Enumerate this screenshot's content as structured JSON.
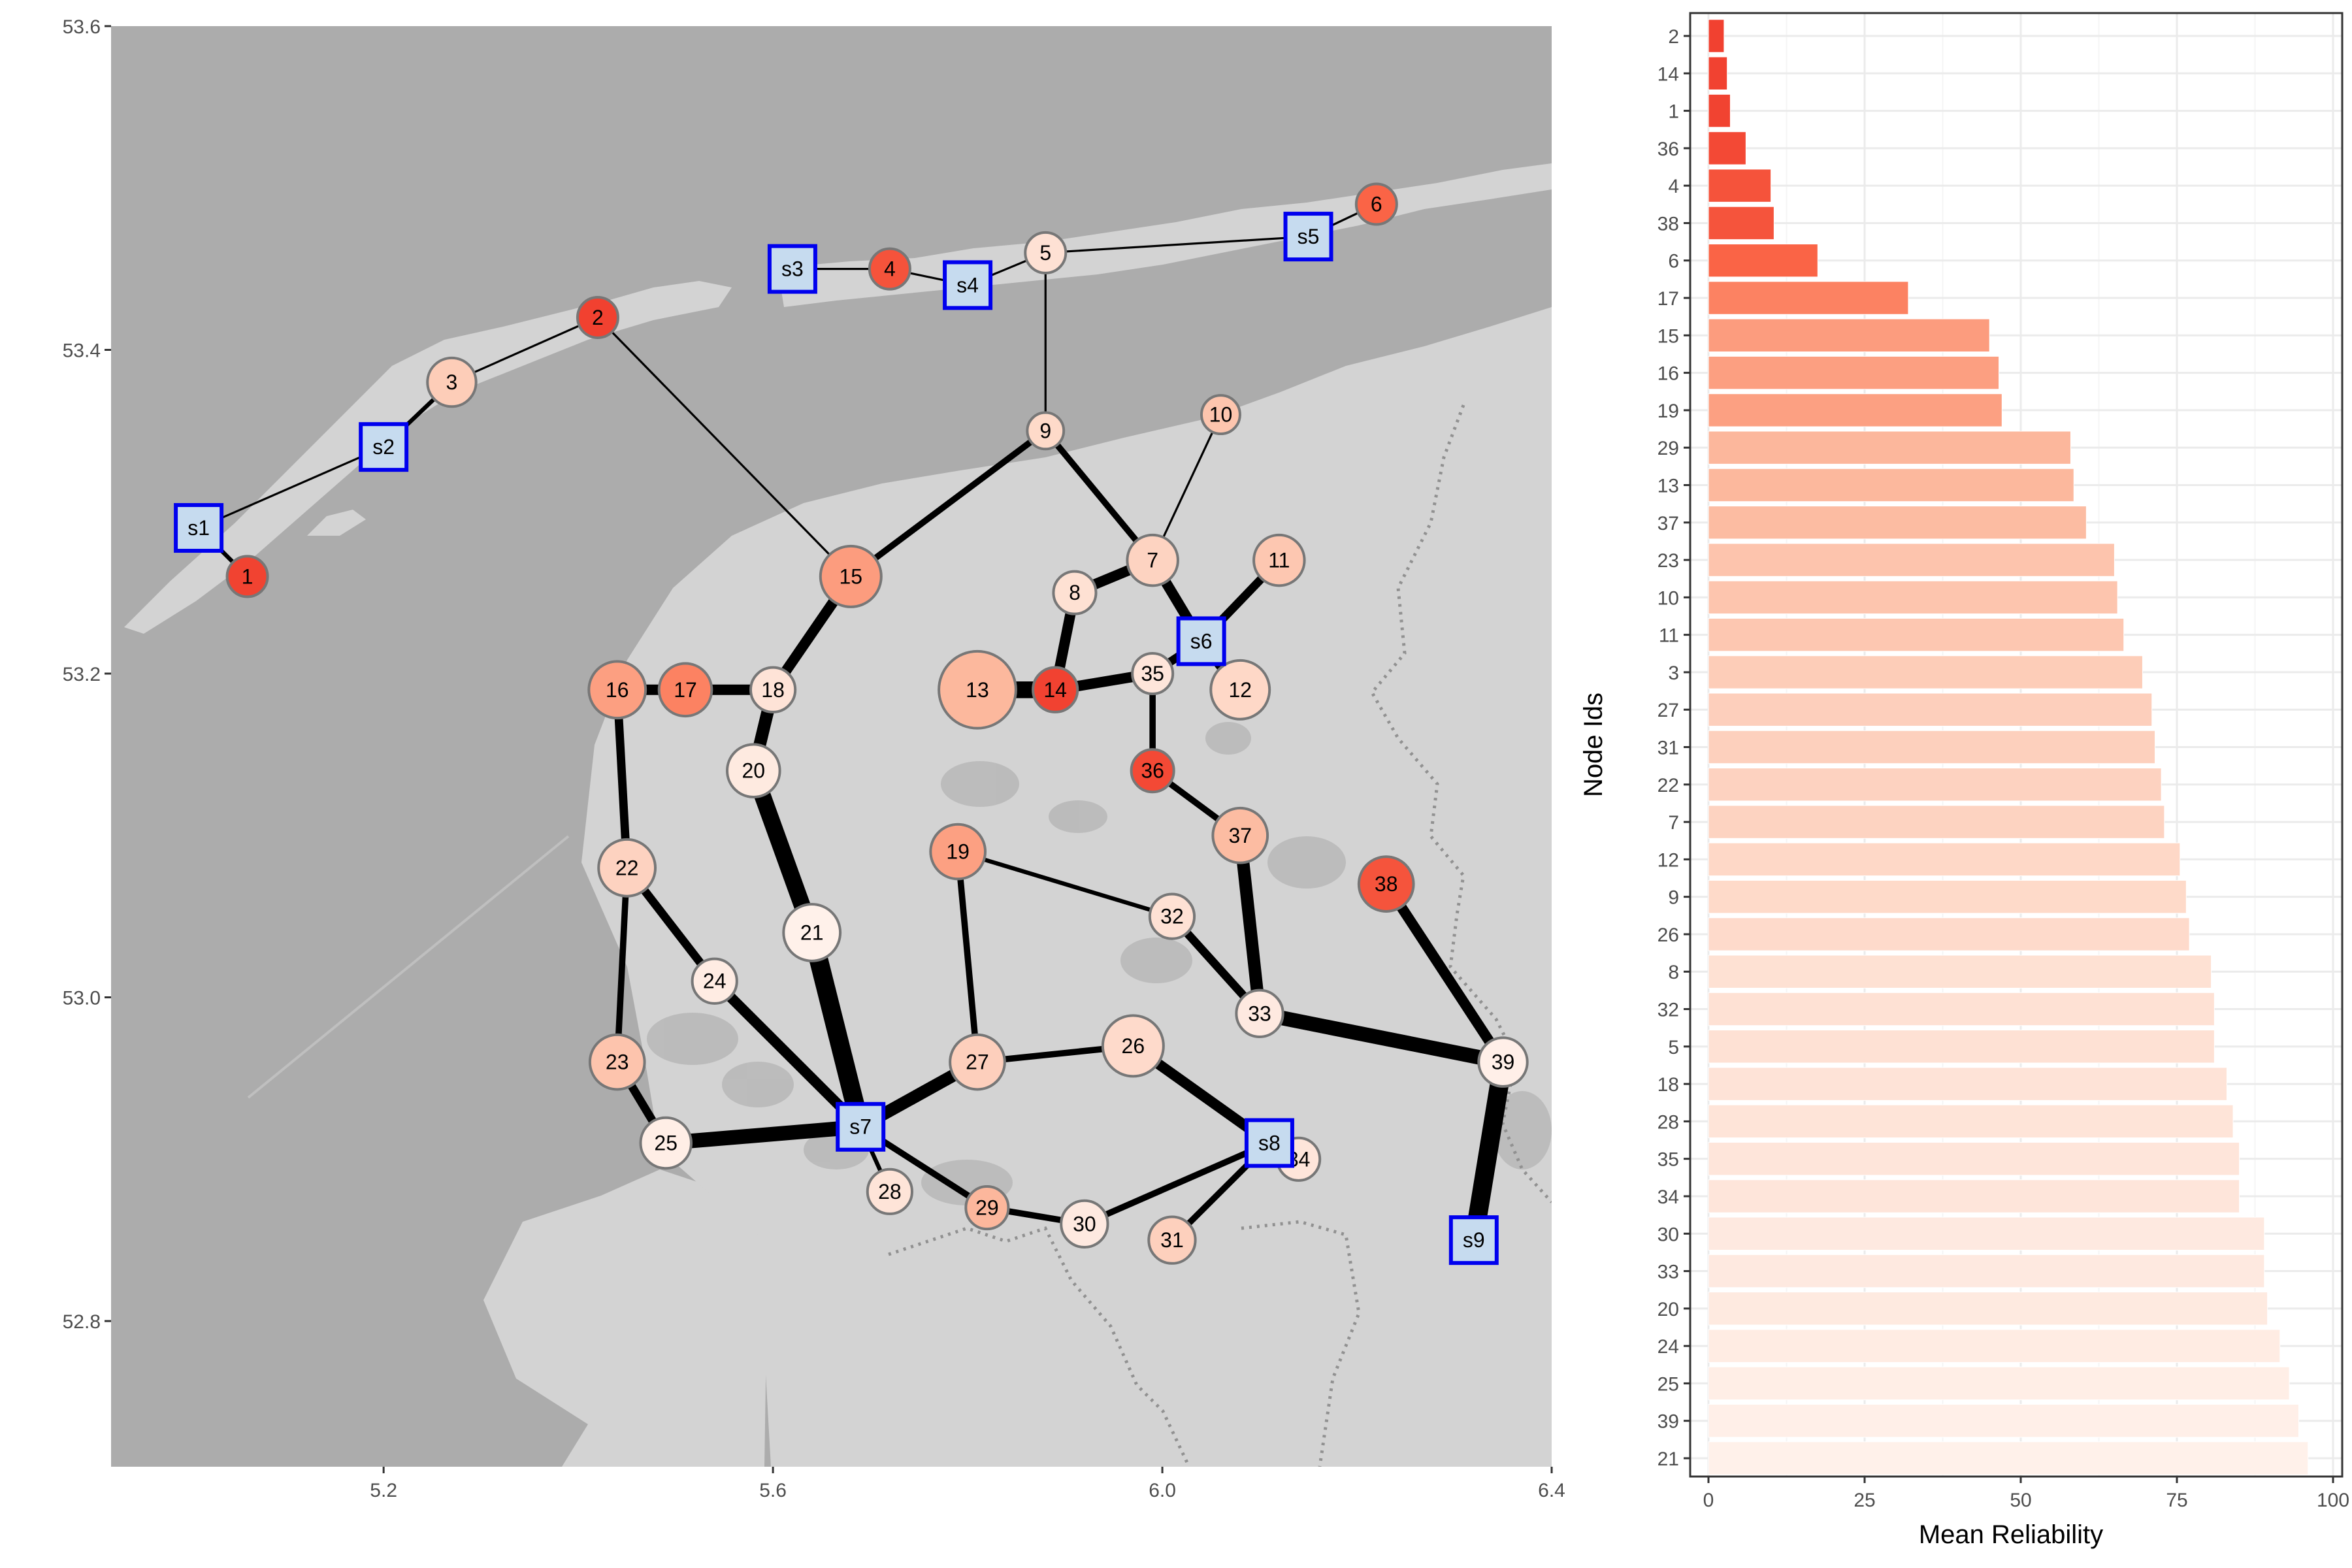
{
  "colors": {
    "sea": "#acacac",
    "land": "#d3d3d3",
    "border": "#919191",
    "edge": "#000000",
    "station_fill": "#c6dbef",
    "station_stroke": "#0000ee",
    "node_stroke": "#777777",
    "bar_gradient": [
      "#fff5f0",
      "#fee0d2",
      "#fcbba1",
      "#fc9272",
      "#fb6a4a",
      "#ef3b2c"
    ],
    "grid_major": "#ebebeb",
    "grid_minor": "#f5f5f5",
    "panel_border": "#333333"
  },
  "chart_data": [
    {
      "type": "network-map",
      "title": "",
      "xlabel": "",
      "ylabel": "",
      "xlim": [
        4.92,
        6.4
      ],
      "ylim": [
        52.71,
        53.6
      ],
      "x_ticks": [
        "5.2",
        "5.6",
        "6.0",
        "6.4"
      ],
      "x_tick_values": [
        5.2,
        5.6,
        6.0,
        6.4
      ],
      "y_ticks": [
        "52.8",
        "53.0",
        "53.2",
        "53.4",
        "53.6"
      ],
      "y_tick_values": [
        52.8,
        53.0,
        53.2,
        53.4,
        53.6
      ],
      "nodes": [
        {
          "id": "1",
          "lon": 5.06,
          "lat": 53.26,
          "reliability": 3.5,
          "size": 1.0,
          "kind": "node"
        },
        {
          "id": "2",
          "lon": 5.42,
          "lat": 53.42,
          "reliability": 2.5,
          "size": 1.0,
          "kind": "node"
        },
        {
          "id": "3",
          "lon": 5.27,
          "lat": 53.38,
          "reliability": 69.5,
          "size": 1.2,
          "kind": "node"
        },
        {
          "id": "4",
          "lon": 5.72,
          "lat": 53.45,
          "reliability": 10.0,
          "size": 1.0,
          "kind": "node"
        },
        {
          "id": "5",
          "lon": 5.88,
          "lat": 53.46,
          "reliability": 81.0,
          "size": 1.0,
          "kind": "node"
        },
        {
          "id": "6",
          "lon": 6.22,
          "lat": 53.49,
          "reliability": 17.5,
          "size": 1.0,
          "kind": "node"
        },
        {
          "id": "7",
          "lon": 5.99,
          "lat": 53.27,
          "reliability": 73.0,
          "size": 1.25,
          "kind": "node"
        },
        {
          "id": "8",
          "lon": 5.91,
          "lat": 53.25,
          "reliability": 80.5,
          "size": 1.05,
          "kind": "node"
        },
        {
          "id": "9",
          "lon": 5.88,
          "lat": 53.35,
          "reliability": 76.5,
          "size": 0.9,
          "kind": "node"
        },
        {
          "id": "10",
          "lon": 6.06,
          "lat": 53.36,
          "reliability": 65.5,
          "size": 0.95,
          "kind": "node"
        },
        {
          "id": "11",
          "lon": 6.12,
          "lat": 53.27,
          "reliability": 66.5,
          "size": 1.25,
          "kind": "node"
        },
        {
          "id": "12",
          "lon": 6.08,
          "lat": 53.19,
          "reliability": 75.5,
          "size": 1.45,
          "kind": "node"
        },
        {
          "id": "13",
          "lon": 5.81,
          "lat": 53.19,
          "reliability": 58.5,
          "size": 1.9,
          "kind": "node"
        },
        {
          "id": "14",
          "lon": 5.89,
          "lat": 53.19,
          "reliability": 3.0,
          "size": 1.1,
          "kind": "node"
        },
        {
          "id": "15",
          "lon": 5.68,
          "lat": 53.26,
          "reliability": 45.0,
          "size": 1.5,
          "kind": "node"
        },
        {
          "id": "16",
          "lon": 5.44,
          "lat": 53.19,
          "reliability": 46.5,
          "size": 1.4,
          "kind": "node"
        },
        {
          "id": "17",
          "lon": 5.51,
          "lat": 53.19,
          "reliability": 32.0,
          "size": 1.3,
          "kind": "node"
        },
        {
          "id": "18",
          "lon": 5.6,
          "lat": 53.19,
          "reliability": 83.0,
          "size": 1.1,
          "kind": "node"
        },
        {
          "id": "19",
          "lon": 5.79,
          "lat": 53.09,
          "reliability": 47.0,
          "size": 1.35,
          "kind": "node"
        },
        {
          "id": "20",
          "lon": 5.58,
          "lat": 53.14,
          "reliability": 89.5,
          "size": 1.3,
          "kind": "node"
        },
        {
          "id": "21",
          "lon": 5.64,
          "lat": 53.04,
          "reliability": 96.0,
          "size": 1.4,
          "kind": "node"
        },
        {
          "id": "22",
          "lon": 5.45,
          "lat": 53.08,
          "reliability": 72.5,
          "size": 1.4,
          "kind": "node"
        },
        {
          "id": "23",
          "lon": 5.44,
          "lat": 52.96,
          "reliability": 65.0,
          "size": 1.35,
          "kind": "node"
        },
        {
          "id": "24",
          "lon": 5.54,
          "lat": 53.01,
          "reliability": 91.5,
          "size": 1.1,
          "kind": "node"
        },
        {
          "id": "25",
          "lon": 5.49,
          "lat": 52.91,
          "reliability": 93.0,
          "size": 1.25,
          "kind": "node"
        },
        {
          "id": "26",
          "lon": 5.97,
          "lat": 52.97,
          "reliability": 77.0,
          "size": 1.5,
          "kind": "node"
        },
        {
          "id": "27",
          "lon": 5.81,
          "lat": 52.96,
          "reliability": 71.0,
          "size": 1.35,
          "kind": "node"
        },
        {
          "id": "28",
          "lon": 5.72,
          "lat": 52.88,
          "reliability": 84.0,
          "size": 1.1,
          "kind": "node"
        },
        {
          "id": "29",
          "lon": 5.82,
          "lat": 52.87,
          "reliability": 58.0,
          "size": 1.05,
          "kind": "node"
        },
        {
          "id": "30",
          "lon": 5.92,
          "lat": 52.86,
          "reliability": 89.0,
          "size": 1.15,
          "kind": "node"
        },
        {
          "id": "31",
          "lon": 6.01,
          "lat": 52.85,
          "reliability": 71.5,
          "size": 1.15,
          "kind": "node"
        },
        {
          "id": "32",
          "lon": 6.01,
          "lat": 53.05,
          "reliability": 81.0,
          "size": 1.1,
          "kind": "node"
        },
        {
          "id": "33",
          "lon": 6.1,
          "lat": 52.99,
          "reliability": 89.0,
          "size": 1.15,
          "kind": "node"
        },
        {
          "id": "34",
          "lon": 6.14,
          "lat": 52.9,
          "reliability": 85.0,
          "size": 1.05,
          "kind": "node"
        },
        {
          "id": "35",
          "lon": 5.99,
          "lat": 53.2,
          "reliability": 85.0,
          "size": 1.0,
          "kind": "node"
        },
        {
          "id": "36",
          "lon": 5.99,
          "lat": 53.14,
          "reliability": 6.0,
          "size": 1.05,
          "kind": "node"
        },
        {
          "id": "37",
          "lon": 6.08,
          "lat": 53.1,
          "reliability": 60.5,
          "size": 1.35,
          "kind": "node"
        },
        {
          "id": "38",
          "lon": 6.23,
          "lat": 53.07,
          "reliability": 10.5,
          "size": 1.35,
          "kind": "node"
        },
        {
          "id": "39",
          "lon": 6.35,
          "lat": 52.96,
          "reliability": 94.5,
          "size": 1.2,
          "kind": "node"
        },
        {
          "id": "s1",
          "lon": 5.01,
          "lat": 53.29,
          "kind": "station"
        },
        {
          "id": "s2",
          "lon": 5.2,
          "lat": 53.34,
          "kind": "station"
        },
        {
          "id": "s3",
          "lon": 5.62,
          "lat": 53.45,
          "kind": "station"
        },
        {
          "id": "s4",
          "lon": 5.8,
          "lat": 53.44,
          "kind": "station"
        },
        {
          "id": "s5",
          "lon": 6.15,
          "lat": 53.47,
          "kind": "station"
        },
        {
          "id": "s6",
          "lon": 6.04,
          "lat": 53.22,
          "kind": "station"
        },
        {
          "id": "s7",
          "lon": 5.69,
          "lat": 52.92,
          "kind": "station"
        },
        {
          "id": "s8",
          "lon": 6.11,
          "lat": 52.91,
          "kind": "station"
        },
        {
          "id": "s9",
          "lon": 6.32,
          "lat": 52.85,
          "kind": "station"
        }
      ],
      "edges": [
        {
          "from": "1",
          "to": "s1",
          "weight": 2
        },
        {
          "from": "s1",
          "to": "s2",
          "weight": 1
        },
        {
          "from": "s2",
          "to": "3",
          "weight": 2
        },
        {
          "from": "3",
          "to": "2",
          "weight": 1
        },
        {
          "from": "2",
          "to": "15",
          "weight": 1
        },
        {
          "from": "s3",
          "to": "4",
          "weight": 1
        },
        {
          "from": "4",
          "to": "s4",
          "weight": 1
        },
        {
          "from": "s4",
          "to": "5",
          "weight": 1
        },
        {
          "from": "5",
          "to": "s5",
          "weight": 1
        },
        {
          "from": "s5",
          "to": "6",
          "weight": 1
        },
        {
          "from": "5",
          "to": "9",
          "weight": 1
        },
        {
          "from": "9",
          "to": "15",
          "weight": 3
        },
        {
          "from": "9",
          "to": "7",
          "weight": 3
        },
        {
          "from": "10",
          "to": "7",
          "weight": 1
        },
        {
          "from": "7",
          "to": "8",
          "weight": 5
        },
        {
          "from": "7",
          "to": "s6",
          "weight": 5
        },
        {
          "from": "11",
          "to": "s6",
          "weight": 4
        },
        {
          "from": "s6",
          "to": "12",
          "weight": 5
        },
        {
          "from": "s6",
          "to": "35",
          "weight": 4
        },
        {
          "from": "8",
          "to": "14",
          "weight": 5
        },
        {
          "from": "13",
          "to": "14",
          "weight": 8
        },
        {
          "from": "14",
          "to": "35",
          "weight": 5
        },
        {
          "from": "35",
          "to": "36",
          "weight": 3
        },
        {
          "from": "36",
          "to": "37",
          "weight": 3
        },
        {
          "from": "37",
          "to": "33",
          "weight": 6
        },
        {
          "from": "15",
          "to": "18",
          "weight": 5
        },
        {
          "from": "16",
          "to": "17",
          "weight": 5
        },
        {
          "from": "17",
          "to": "18",
          "weight": 5
        },
        {
          "from": "18",
          "to": "20",
          "weight": 6
        },
        {
          "from": "20",
          "to": "21",
          "weight": 8
        },
        {
          "from": "21",
          "to": "s7",
          "weight": 9
        },
        {
          "from": "16",
          "to": "22",
          "weight": 4
        },
        {
          "from": "22",
          "to": "23",
          "weight": 3
        },
        {
          "from": "22",
          "to": "24",
          "weight": 4
        },
        {
          "from": "24",
          "to": "s7",
          "weight": 5
        },
        {
          "from": "23",
          "to": "25",
          "weight": 4
        },
        {
          "from": "25",
          "to": "s7",
          "weight": 7
        },
        {
          "from": "s7",
          "to": "27",
          "weight": 6
        },
        {
          "from": "s7",
          "to": "28",
          "weight": 2
        },
        {
          "from": "s7",
          "to": "29",
          "weight": 3
        },
        {
          "from": "19",
          "to": "27",
          "weight": 3
        },
        {
          "from": "19",
          "to": "32",
          "weight": 2
        },
        {
          "from": "27",
          "to": "26",
          "weight": 3
        },
        {
          "from": "26",
          "to": "s8",
          "weight": 5
        },
        {
          "from": "s8",
          "to": "34",
          "weight": 2
        },
        {
          "from": "s8",
          "to": "30",
          "weight": 3
        },
        {
          "from": "s8",
          "to": "31",
          "weight": 3
        },
        {
          "from": "29",
          "to": "30",
          "weight": 3
        },
        {
          "from": "32",
          "to": "33",
          "weight": 4
        },
        {
          "from": "33",
          "to": "39",
          "weight": 7
        },
        {
          "from": "38",
          "to": "39",
          "weight": 5
        },
        {
          "from": "39",
          "to": "s9",
          "weight": 9
        }
      ]
    },
    {
      "type": "bar",
      "orientation": "horizontal",
      "title": "",
      "xlabel": "Mean Reliability",
      "ylabel": "Node Ids",
      "xlim": [
        0,
        100
      ],
      "x_ticks": [
        0,
        25,
        50,
        75,
        100
      ],
      "categories": [
        "2",
        "14",
        "1",
        "36",
        "4",
        "38",
        "6",
        "17",
        "15",
        "16",
        "19",
        "29",
        "13",
        "37",
        "23",
        "10",
        "11",
        "3",
        "27",
        "31",
        "22",
        "7",
        "12",
        "9",
        "26",
        "8",
        "32",
        "5",
        "18",
        "28",
        "35",
        "34",
        "30",
        "33",
        "20",
        "24",
        "25",
        "39",
        "21"
      ],
      "values": [
        2.5,
        3.0,
        3.5,
        6.0,
        10.0,
        10.5,
        17.5,
        32.0,
        45.0,
        46.5,
        47.0,
        58.0,
        58.5,
        60.5,
        65.0,
        65.5,
        66.5,
        69.5,
        71.0,
        71.5,
        72.5,
        73.0,
        75.5,
        76.5,
        77.0,
        80.5,
        81.0,
        81.0,
        83.0,
        84.0,
        85.0,
        85.0,
        89.0,
        89.0,
        89.5,
        91.5,
        93.0,
        94.5,
        96.0
      ]
    }
  ]
}
